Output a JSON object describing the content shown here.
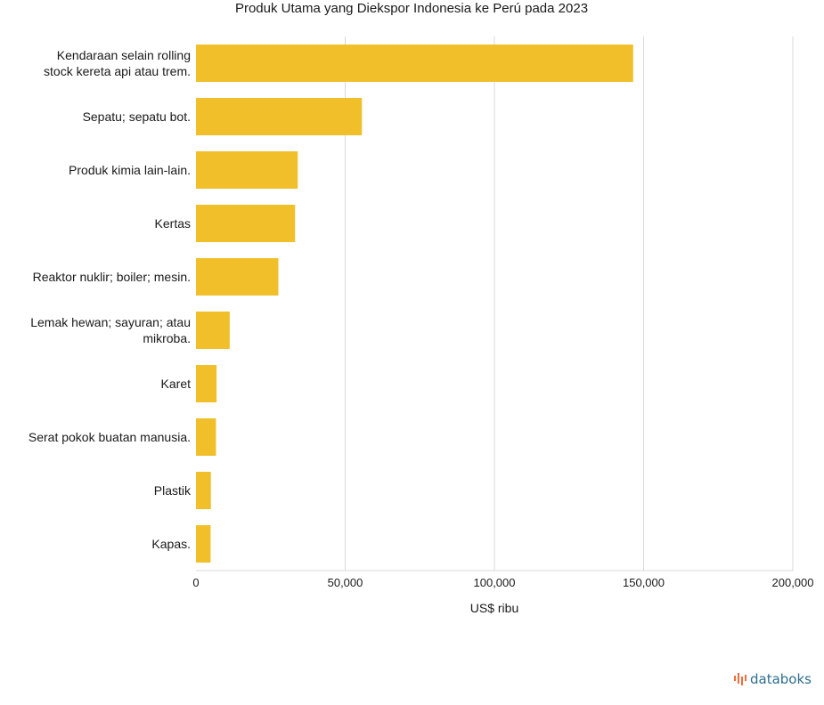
{
  "chart_data": {
    "type": "bar",
    "orientation": "horizontal",
    "title": "Produk Utama yang Diekspor Indonesia ke Perú pada 2023",
    "xlabel": "US$ ribu",
    "ylabel": "",
    "xlim": [
      0,
      200000
    ],
    "ticks": [
      "0",
      "50,000",
      "100,000",
      "150,000",
      "200,000"
    ],
    "grid": true,
    "bar_color": "#F0BF2A",
    "categories": [
      [
        "Kendaraan selain rolling",
        "stock kereta api atau trem."
      ],
      [
        "Sepatu; sepatu bot."
      ],
      [
        "Produk kimia lain-lain."
      ],
      [
        "Kertas"
      ],
      [
        "Reaktor nuklir; boiler; mesin."
      ],
      [
        "Lemak hewan; sayuran; atau",
        "mikroba."
      ],
      [
        "Karet"
      ],
      [
        "Serat pokok buatan manusia."
      ],
      [
        "Plastik"
      ],
      [
        "Kapas."
      ]
    ],
    "values": [
      146500,
      55600,
      34100,
      33200,
      27600,
      11300,
      6900,
      6700,
      5000,
      4900
    ]
  },
  "brand": {
    "name": "databoks",
    "color": "#2B6E8F",
    "accent": "#F26B3A"
  }
}
